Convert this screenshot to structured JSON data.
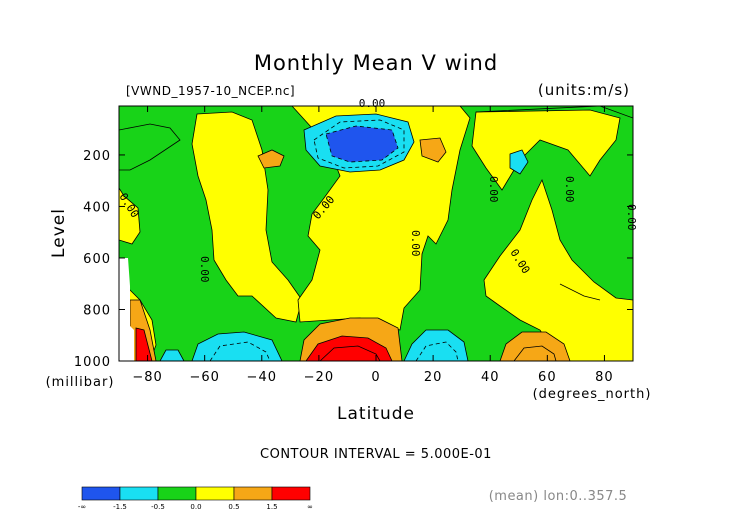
{
  "chart_data": {
    "type": "heatmap",
    "title": "Monthly Mean V wind",
    "file_label": "[VWND_1957-10_NCEP.nc]",
    "units_label": "(units:m/s)",
    "xlabel": "Latitude",
    "x_unit_label": "(degrees_north)",
    "ylabel": "Level",
    "y_unit_label": "(millibar)",
    "xlim": [
      -90,
      90
    ],
    "ylim": [
      1000,
      10
    ],
    "x_ticks": [
      -80,
      -60,
      -40,
      -20,
      0,
      20,
      40,
      60,
      80
    ],
    "y_ticks": [
      200,
      400,
      600,
      800,
      1000
    ],
    "contour_interval_label": "CONTOUR INTERVAL = 5.000E-01",
    "contour_line_label": "0.00",
    "footer_note": "(mean) lon:0..357.5",
    "colorbar": {
      "labels": [
        "-∞",
        "-1.5",
        "-0.5",
        "0.0",
        "0.5",
        "1.5",
        "∞"
      ],
      "colors": [
        "#1f55ee",
        "#19dff2",
        "#18d318",
        "#ffff00",
        "#f6a716",
        "#ff0000"
      ]
    },
    "colors": {
      "strong_negative": "#1f55ee",
      "negative": "#19dff2",
      "weak_negative": "#18d318",
      "weak_positive": "#ffff00",
      "positive": "#f6a716",
      "strong_positive": "#ff0000"
    },
    "features": [
      {
        "sign": "negative",
        "lat": -10,
        "level": 150,
        "peak": -2.0
      },
      {
        "sign": "positive",
        "lat": -10,
        "level": 980,
        "peak": 2.0
      },
      {
        "sign": "negative",
        "lat": -50,
        "level": 980,
        "peak": -1.0
      },
      {
        "sign": "negative",
        "lat": 18,
        "level": 980,
        "peak": -1.0
      },
      {
        "sign": "positive",
        "lat": 55,
        "level": 960,
        "peak": 1.0
      },
      {
        "sign": "positive",
        "lat": -88,
        "level": 950,
        "peak": 2.0
      }
    ]
  }
}
